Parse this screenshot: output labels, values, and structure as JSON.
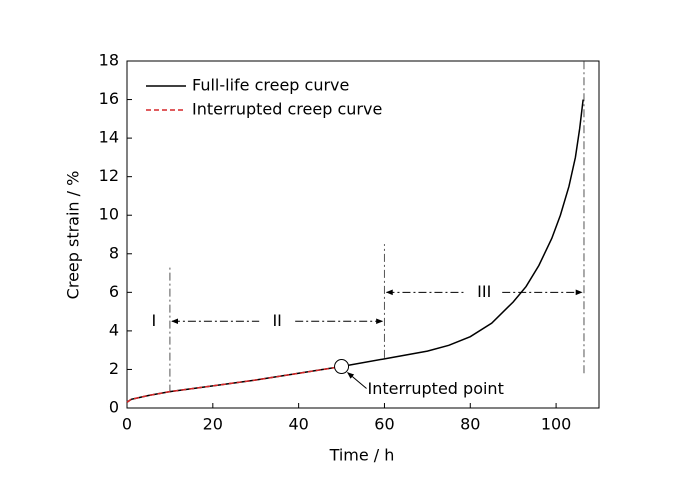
{
  "chart_data": {
    "type": "line",
    "xlabel": "Time / h",
    "ylabel": "Creep strain / %",
    "xlim": [
      0,
      110
    ],
    "xticks": [
      0,
      20,
      40,
      60,
      80,
      100
    ],
    "ylim": [
      0,
      18
    ],
    "yticks": [
      0,
      2,
      4,
      6,
      8,
      10,
      12,
      14,
      16,
      18
    ],
    "legend": "upper left",
    "series": [
      {
        "name": "Full-life creep curve",
        "color": "#000000",
        "dash": false,
        "x": [
          0,
          1,
          2,
          5,
          10,
          20,
          30,
          40,
          50,
          60,
          70,
          75,
          80,
          85,
          90,
          93,
          96,
          99,
          101,
          103,
          104.5,
          105.5,
          106.3
        ],
        "values": [
          0.3,
          0.45,
          0.5,
          0.65,
          0.85,
          1.15,
          1.45,
          1.8,
          2.15,
          2.55,
          2.95,
          3.25,
          3.7,
          4.4,
          5.5,
          6.3,
          7.4,
          8.8,
          10,
          11.5,
          13,
          14.5,
          16
        ]
      },
      {
        "name": "Interrupted creep curve",
        "color": "#d62728",
        "dash": true,
        "x": [
          0,
          1,
          2,
          5,
          10,
          20,
          30,
          40,
          50
        ],
        "values": [
          0.3,
          0.45,
          0.5,
          0.65,
          0.85,
          1.15,
          1.45,
          1.8,
          2.15
        ]
      }
    ],
    "boundaries": [
      {
        "x": 10,
        "y": [
          0.8,
          7.3
        ]
      },
      {
        "x": 60,
        "y": [
          2.6,
          8.5
        ]
      },
      {
        "x": 106.5,
        "y": [
          1.8,
          18
        ]
      }
    ],
    "stages": [
      {
        "label": "I",
        "x": [
          0,
          10
        ],
        "y": 4.5,
        "arrow": false
      },
      {
        "label": "II",
        "x": [
          10,
          60
        ],
        "y": 4.5,
        "arrow": true
      },
      {
        "label": "III",
        "x": [
          60,
          106.5
        ],
        "y": 6,
        "arrow": true
      }
    ],
    "interrupted_point": {
      "text": "Interrupted point",
      "x": 50,
      "y": 2.15
    }
  }
}
